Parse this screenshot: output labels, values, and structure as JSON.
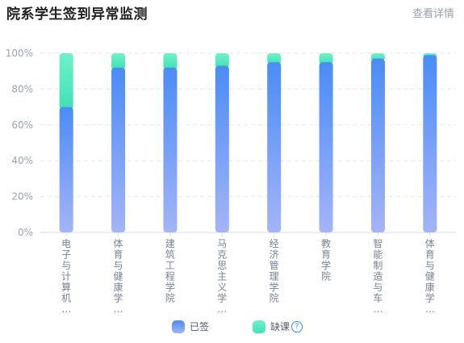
{
  "header": {
    "title": "院系学生签到异常监测",
    "detail_link": "查看详情"
  },
  "legend": [
    {
      "label": "已签",
      "color_top": "#4a8cf7",
      "color_bottom": "#a4b4f8"
    },
    {
      "label": "缺课",
      "color_top": "#6ff2c8",
      "color_bottom": "#3fe0b6",
      "help": "?"
    }
  ],
  "chart_data": {
    "type": "bar",
    "stacked": true,
    "categories": [
      "电子与计算机...",
      "体育与健康学...",
      "建筑工程学院",
      "马克思主义学...",
      "经济管理学院",
      "教育学院",
      "智能制造与车...",
      "体育与健康学..."
    ],
    "category_display": [
      [
        "电",
        "子",
        "与",
        "计",
        "算",
        "机",
        "…"
      ],
      [
        "体",
        "育",
        "与",
        "健",
        "康",
        "学",
        "…"
      ],
      [
        "建",
        "筑",
        "工",
        "程",
        "学",
        "院"
      ],
      [
        "马",
        "克",
        "思",
        "主",
        "义",
        "学",
        "…"
      ],
      [
        "经",
        "济",
        "管",
        "理",
        "学",
        "院"
      ],
      [
        "教",
        "育",
        "学",
        "院"
      ],
      [
        "智",
        "能",
        "制",
        "造",
        "与",
        "车",
        "…"
      ],
      [
        "体",
        "育",
        "与",
        "健",
        "康",
        "学",
        "…"
      ]
    ],
    "series": [
      {
        "name": "已签",
        "values": [
          70,
          92,
          92,
          93,
          95,
          95,
          97,
          99
        ]
      },
      {
        "name": "缺课",
        "values": [
          30,
          8,
          8,
          7,
          5,
          5,
          3,
          1
        ]
      }
    ],
    "ylim": [
      0,
      100
    ],
    "y_ticks": [
      "0%",
      "20%",
      "40%",
      "60%",
      "80%",
      "100%"
    ],
    "grid": true,
    "legend_position": "bottom"
  }
}
